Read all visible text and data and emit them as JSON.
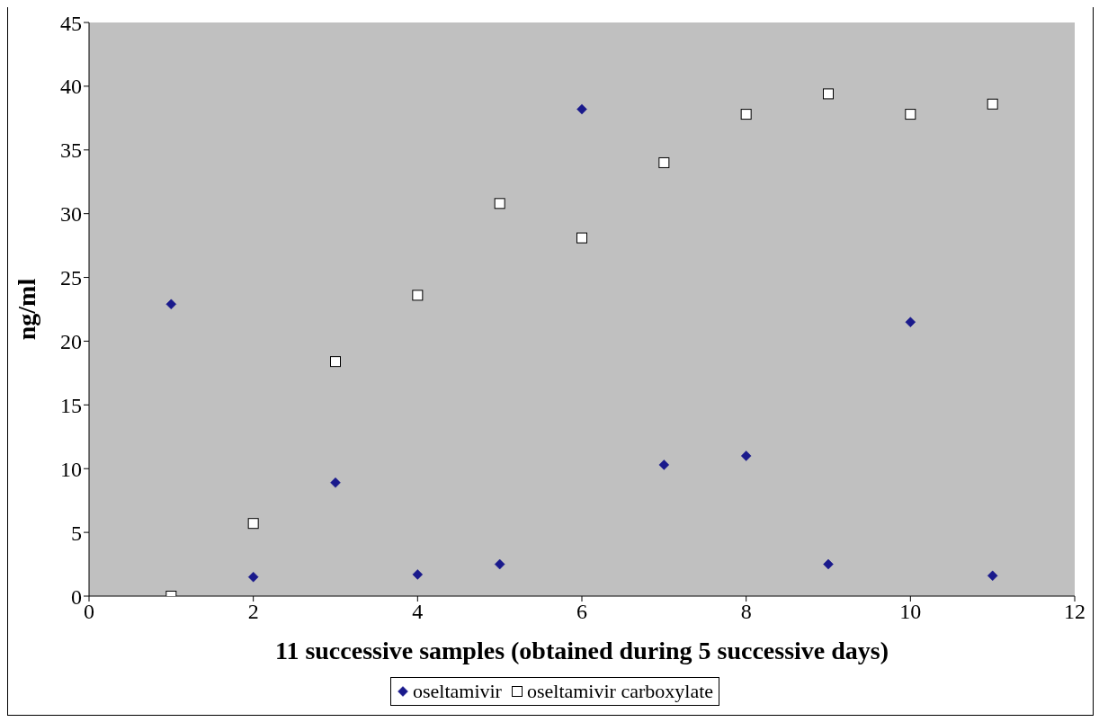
{
  "chart_data": {
    "type": "scatter",
    "xlabel": "11 successive samples (obtained during 5 successive days)",
    "ylabel": "ng/ml",
    "xlim": [
      0,
      12
    ],
    "xticks": [
      0,
      2,
      4,
      6,
      8,
      10,
      12
    ],
    "ylim": [
      0,
      45
    ],
    "yticks": [
      0,
      5,
      10,
      15,
      20,
      25,
      30,
      35,
      40,
      45
    ],
    "legend": "bottom",
    "x": [
      1,
      2,
      3,
      4,
      5,
      6,
      7,
      8,
      9,
      10,
      11
    ],
    "series": [
      {
        "name": "oseltamivir",
        "color": "#1a1a8c",
        "marker": "diamond",
        "values": [
          22.9,
          1.5,
          8.9,
          1.7,
          2.5,
          38.2,
          10.3,
          11.0,
          2.5,
          21.5,
          1.6
        ]
      },
      {
        "name": "oseltamivir carboxylate",
        "color": "#ffffff",
        "marker": "square",
        "values": [
          0,
          5.7,
          18.4,
          23.6,
          30.8,
          28.1,
          34.0,
          37.8,
          39.4,
          37.8,
          38.6
        ]
      }
    ]
  }
}
